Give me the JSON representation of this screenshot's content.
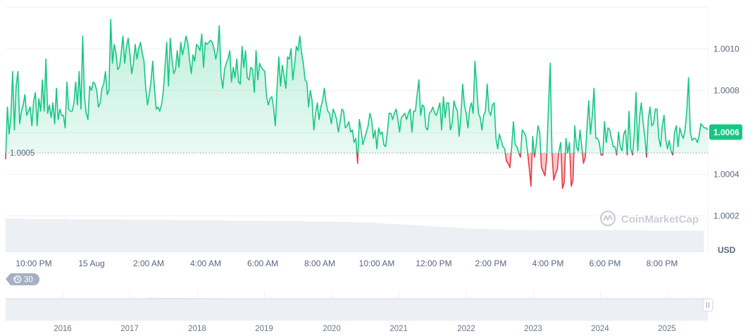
{
  "chart_data": {
    "type": "line",
    "baseline": 1.0005,
    "baseline_label": "1.0005",
    "current_price": 1.0006,
    "current_price_label": "1.0006",
    "currency": "USD",
    "watermark": "CoinMarketCap",
    "yticks": [
      1.0002,
      1.0004,
      1.0006,
      1.0008,
      1.001
    ],
    "ytick_labels": [
      "1.0002",
      "1.0004",
      "",
      "1.0008",
      "1.0010"
    ],
    "ylim": [
      1.0001,
      1.00115
    ],
    "xtick_labels": [
      "10:00 PM",
      "15 Aug",
      "2:00 AM",
      "4:00 AM",
      "6:00 AM",
      "8:00 AM",
      "10:00 AM",
      "12:00 PM",
      "2:00 PM",
      "4:00 PM",
      "6:00 PM",
      "8:00 PM"
    ],
    "positive_color": "#16c784",
    "negative_color": "#ea3943",
    "series": [
      {
        "values": [
          1.00047,
          1.00072,
          1.00059,
          1.00067,
          1.00089,
          1.00061,
          1.00082,
          1.00089,
          1.00064,
          1.0007,
          1.00073,
          1.00078,
          1.00068,
          1.0007,
          1.00072,
          1.00063,
          1.00075,
          1.00079,
          1.00063,
          1.00076,
          1.0007,
          1.00085,
          1.0007,
          1.00095,
          1.00069,
          1.00073,
          1.00067,
          1.00074,
          1.00064,
          1.00081,
          1.00066,
          1.00071,
          1.00068,
          1.00068,
          1.00062,
          1.00084,
          1.00071,
          1.0007,
          1.0007,
          1.00074,
          1.00084,
          1.00073,
          1.00089,
          1.00071,
          1.00106,
          1.00077,
          1.00069,
          1.00066,
          1.00082,
          1.0008,
          1.00084,
          1.00083,
          1.0008,
          1.00072,
          1.00074,
          1.00081,
          1.00083,
          1.00089,
          1.00078,
          1.0008,
          1.00114,
          1.00093,
          1.00102,
          1.00098,
          1.0009,
          1.00091,
          1.00098,
          1.00106,
          1.00093,
          1.00101,
          1.00105,
          1.00097,
          1.00088,
          1.00093,
          1.00102,
          1.00095,
          1.001,
          1.00103,
          1.00098,
          1.00094,
          1.00081,
          1.00073,
          1.00078,
          1.00084,
          1.00094,
          1.00081,
          1.00071,
          1.00072,
          1.0007,
          1.00073,
          1.00079,
          1.00091,
          1.00103,
          1.00082,
          1.00105,
          1.00095,
          1.00088,
          1.0009,
          1.00099,
          1.00091,
          1.00103,
          1.00097,
          1.00101,
          1.00106,
          1.00103,
          1.00095,
          1.00088,
          1.00097,
          1.00094,
          1.00102,
          1.00101,
          1.00099,
          1.00107,
          1.00091,
          1.00103,
          1.00102,
          1.00103,
          1.00104,
          1.00103,
          1.001,
          1.00095,
          1.00099,
          1.00111,
          1.00087,
          1.00081,
          1.0009,
          1.00093,
          1.00095,
          1.00099,
          1.00084,
          1.00091,
          1.00086,
          1.00095,
          1.00084,
          1.00083,
          1.00101,
          1.00091,
          1.00099,
          1.00086,
          1.00085,
          1.00091,
          1.0009,
          1.00079,
          1.00099,
          1.00085,
          1.00093,
          1.00091,
          1.0009,
          1.00089,
          1.00077,
          1.00073,
          1.00076,
          1.00077,
          1.00072,
          1.00063,
          1.00081,
          1.00096,
          1.00082,
          1.00092,
          1.00087,
          1.00081,
          1.00096,
          1.00095,
          1.001,
          1.00085,
          1.00092,
          1.00101,
          1.00099,
          1.00106,
          1.00098,
          1.00093,
          1.00085,
          1.00084,
          1.00072,
          1.0008,
          1.00075,
          1.00061,
          1.00069,
          1.00074,
          1.00066,
          1.00072,
          1.00075,
          1.00081,
          1.00074,
          1.0007,
          1.00069,
          1.00064,
          1.00071,
          1.00069,
          1.00066,
          1.0006,
          1.00065,
          1.00071,
          1.0007,
          1.00062,
          1.00063,
          1.00065,
          1.0006,
          1.00061,
          1.00055,
          1.00057,
          1.00045,
          1.00066,
          1.00061,
          1.00054,
          1.00057,
          1.0006,
          1.00063,
          1.00069,
          1.00066,
          1.00057,
          1.00061,
          1.00052,
          1.00062,
          1.00059,
          1.0006,
          1.00054,
          1.00053,
          1.0006,
          1.00069,
          1.00069,
          1.00066,
          1.00069,
          1.00071,
          1.00066,
          1.0006,
          1.00067,
          1.00068,
          1.00069,
          1.00066,
          1.00069,
          1.00071,
          1.0006,
          1.0007,
          1.0007,
          1.00078,
          1.00085,
          1.00068,
          1.00073,
          1.00072,
          1.00062,
          1.00061,
          1.00069,
          1.0007,
          1.00072,
          1.00069,
          1.00068,
          1.00071,
          1.00074,
          1.00061,
          1.00077,
          1.00067,
          1.00074,
          1.00074,
          1.00061,
          1.00064,
          1.00075,
          1.00072,
          1.0007,
          1.00058,
          1.00068,
          1.00083,
          1.00073,
          1.00069,
          1.00062,
          1.00071,
          1.00074,
          1.00069,
          1.00094,
          1.00082,
          1.00069,
          1.00067,
          1.00061,
          1.00068,
          1.0007,
          1.00083,
          1.0007,
          1.00068,
          1.00073,
          1.00074,
          1.00057,
          1.00052,
          1.00059,
          1.00056,
          1.00053,
          1.00052,
          1.00046,
          1.00045,
          1.00043,
          1.00053,
          1.00065,
          1.00054,
          1.00053,
          1.0005,
          1.00048,
          1.00061,
          1.0006,
          1.00058,
          1.00051,
          1.00043,
          1.00034,
          1.00058,
          1.00048,
          1.00054,
          1.00063,
          1.0006,
          1.00043,
          1.00041,
          1.00039,
          1.00048,
          1.00072,
          1.00093,
          1.0005,
          1.00037,
          1.0004,
          1.00042,
          1.00051,
          1.00055,
          1.00033,
          1.00036,
          1.00057,
          1.0005,
          1.00055,
          1.00034,
          1.00037,
          1.00063,
          1.00053,
          1.00051,
          1.00061,
          1.00053,
          1.00045,
          1.00048,
          1.00062,
          1.00075,
          1.00059,
          1.00068,
          1.00081,
          1.00057,
          1.00057,
          1.00055,
          1.00049,
          1.00049,
          1.00065,
          1.00055,
          1.00062,
          1.00061,
          1.00057,
          1.00053,
          1.00053,
          1.00049,
          1.0006,
          1.00053,
          1.00051,
          1.00059,
          1.00061,
          1.00049,
          1.0007,
          1.00052,
          1.00049,
          1.00059,
          1.00079,
          1.00051,
          1.00067,
          1.00074,
          1.00065,
          1.00058,
          1.00048,
          1.00066,
          1.00072,
          1.00063,
          1.00064,
          1.00071,
          1.00071,
          1.00057,
          1.00053,
          1.00063,
          1.00068,
          1.00056,
          1.00052,
          1.00056,
          1.00051,
          1.00049,
          1.0006,
          1.00063,
          1.00053,
          1.00062,
          1.00059,
          1.00057,
          1.00061,
          1.0007,
          1.00086,
          1.0006,
          1.00056,
          1.00057,
          1.00057,
          1.00055,
          1.00058,
          1.00064,
          1.00063,
          1.00062,
          1.00062,
          1.00061
        ]
      }
    ],
    "volume": {
      "values": [
        0.82,
        0.82,
        0.82,
        0.81,
        0.81,
        0.81,
        0.81,
        0.81,
        0.81,
        0.8,
        0.8,
        0.8,
        0.8,
        0.8,
        0.8,
        0.8,
        0.8,
        0.79,
        0.79,
        0.79,
        0.79,
        0.79,
        0.79,
        0.79,
        0.78,
        0.78,
        0.78,
        0.78,
        0.78,
        0.78,
        0.78,
        0.77,
        0.77,
        0.77,
        0.77,
        0.77,
        0.77,
        0.76,
        0.76,
        0.76,
        0.76,
        0.76,
        0.76,
        0.75,
        0.75,
        0.75,
        0.75,
        0.74,
        0.74,
        0.74,
        0.73,
        0.73,
        0.72,
        0.71,
        0.7,
        0.69,
        0.68,
        0.67,
        0.66,
        0.65,
        0.64,
        0.63,
        0.62,
        0.61,
        0.6,
        0.59,
        0.58,
        0.57,
        0.57,
        0.56,
        0.56,
        0.55,
        0.55,
        0.55,
        0.55,
        0.54,
        0.54,
        0.54,
        0.54,
        0.54,
        0.54,
        0.54,
        0.54,
        0.54,
        0.54,
        0.54,
        0.54,
        0.54,
        0.54,
        0.54,
        0.54,
        0.53,
        0.53,
        0.53,
        0.53,
        0.53,
        0.53,
        0.53,
        0.53,
        0.53
      ]
    },
    "navigator": {
      "year_labels": [
        "2016",
        "2017",
        "2018",
        "2019",
        "2020",
        "2021",
        "2022",
        "2023",
        "2024",
        "2025"
      ]
    }
  },
  "controls": {
    "interval_label": "30",
    "history_icon": "history-icon"
  }
}
